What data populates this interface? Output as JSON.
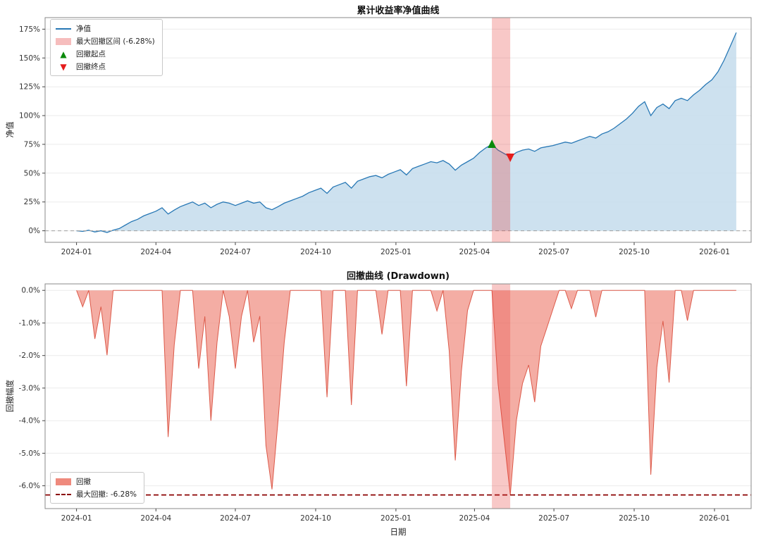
{
  "figure": {
    "background": "#ffffff"
  },
  "x_domain": [
    "2023-11-26",
    "2026-02-12"
  ],
  "dates": [
    "2024-01-01",
    "2024-01-08",
    "2024-01-15",
    "2024-01-22",
    "2024-01-29",
    "2024-02-05",
    "2024-02-12",
    "2024-02-19",
    "2024-02-26",
    "2024-03-04",
    "2024-03-11",
    "2024-03-18",
    "2024-03-25",
    "2024-04-01",
    "2024-04-08",
    "2024-04-15",
    "2024-04-22",
    "2024-04-29",
    "2024-05-06",
    "2024-05-13",
    "2024-05-20",
    "2024-05-27",
    "2024-06-03",
    "2024-06-10",
    "2024-06-17",
    "2024-06-24",
    "2024-07-01",
    "2024-07-08",
    "2024-07-15",
    "2024-07-22",
    "2024-07-29",
    "2024-08-05",
    "2024-08-12",
    "2024-08-19",
    "2024-08-26",
    "2024-09-02",
    "2024-09-09",
    "2024-09-16",
    "2024-09-23",
    "2024-09-30",
    "2024-10-07",
    "2024-10-14",
    "2024-10-21",
    "2024-10-28",
    "2024-11-04",
    "2024-11-11",
    "2024-11-18",
    "2024-11-25",
    "2024-12-02",
    "2024-12-09",
    "2024-12-16",
    "2024-12-23",
    "2024-12-30",
    "2025-01-06",
    "2025-01-13",
    "2025-01-20",
    "2025-01-27",
    "2025-02-03",
    "2025-02-10",
    "2025-02-17",
    "2025-02-24",
    "2025-03-03",
    "2025-03-10",
    "2025-03-17",
    "2025-03-24",
    "2025-03-31",
    "2025-04-07",
    "2025-04-14",
    "2025-04-21",
    "2025-04-28",
    "2025-05-05",
    "2025-05-12",
    "2025-05-19",
    "2025-05-26",
    "2025-06-02",
    "2025-06-09",
    "2025-06-16",
    "2025-06-23",
    "2025-06-30",
    "2025-07-07",
    "2025-07-14",
    "2025-07-21",
    "2025-07-28",
    "2025-08-04",
    "2025-08-11",
    "2025-08-18",
    "2025-08-25",
    "2025-09-01",
    "2025-09-08",
    "2025-09-15",
    "2025-09-22",
    "2025-09-29",
    "2025-10-06",
    "2025-10-13",
    "2025-10-20",
    "2025-10-27",
    "2025-11-03",
    "2025-11-10",
    "2025-11-17",
    "2025-11-24",
    "2025-12-01",
    "2025-12-08",
    "2025-12-15",
    "2025-12-22",
    "2025-12-29",
    "2026-01-05",
    "2026-01-12",
    "2026-01-19",
    "2026-01-26"
  ],
  "x_ticks": [
    {
      "date": "2024-01-01",
      "label": "2024-01"
    },
    {
      "date": "2024-04-01",
      "label": "2024-04"
    },
    {
      "date": "2024-07-01",
      "label": "2024-07"
    },
    {
      "date": "2024-10-01",
      "label": "2024-10"
    },
    {
      "date": "2025-01-01",
      "label": "2025-01"
    },
    {
      "date": "2025-04-01",
      "label": "2025-04"
    },
    {
      "date": "2025-07-01",
      "label": "2025-07"
    },
    {
      "date": "2025-10-01",
      "label": "2025-10"
    },
    {
      "date": "2026-01-01",
      "label": "2026-01"
    }
  ],
  "chart_data": [
    {
      "type": "area",
      "title": "累计收益率净值曲线",
      "ylabel": "净值",
      "xlabel": "",
      "ylim": [
        -10,
        185
      ],
      "y_ticks": [
        {
          "value": 0,
          "label": "0%"
        },
        {
          "value": 25,
          "label": "25%"
        },
        {
          "value": 50,
          "label": "50%"
        },
        {
          "value": 75,
          "label": "75%"
        },
        {
          "value": 100,
          "label": "100%"
        },
        {
          "value": 125,
          "label": "125%"
        },
        {
          "value": 150,
          "label": "150%"
        },
        {
          "value": 175,
          "label": "175%"
        }
      ],
      "series": [
        {
          "name": "净值",
          "line_color": "#2878b5",
          "fill_color": "#c4dcec",
          "fill_opacity": 0.85,
          "values": [
            0,
            -0.5,
            0.5,
            -1,
            0,
            -1.5,
            0.5,
            2,
            5,
            8,
            10,
            13,
            15,
            17,
            20,
            14.6,
            18,
            21,
            23,
            25,
            22,
            24,
            20,
            23,
            25,
            24,
            22,
            24,
            26,
            24,
            25,
            20,
            18.3,
            21,
            24,
            26,
            28,
            30,
            33,
            35,
            37,
            32.5,
            38,
            40,
            42,
            37,
            43,
            45,
            47,
            48,
            46,
            49,
            51,
            53,
            48.5,
            54,
            56,
            58,
            60,
            59,
            61,
            58,
            52.6,
            57,
            60,
            63,
            68,
            72,
            75,
            70,
            67,
            64,
            68,
            70,
            71,
            69,
            72,
            73,
            74,
            75.5,
            77,
            76,
            78,
            80,
            82,
            80.5,
            84,
            86,
            89,
            93,
            97,
            102,
            108,
            112,
            100,
            107,
            110,
            106,
            113,
            115,
            113,
            118,
            122,
            127,
            131,
            138,
            148,
            160,
            172
          ]
        }
      ],
      "zero_line": {
        "value": 0,
        "color": "#a0a0a0",
        "dash": "5,4"
      },
      "drawdown_band": {
        "label": "最大回撤区间 (-6.28%)",
        "start": "2025-04-21",
        "end": "2025-05-12",
        "color": "#e53935",
        "opacity": 0.28
      },
      "markers": [
        {
          "label": "回撤起点",
          "shape": "triangle-up",
          "color": "#0b8a0b",
          "date": "2025-04-21",
          "value": 75
        },
        {
          "label": "回撤终点",
          "shape": "triangle-down",
          "color": "#e51c1c",
          "date": "2025-05-12",
          "value": 64
        }
      ],
      "legend": {
        "position": "upper-left",
        "items": [
          {
            "glyph": "line",
            "color": "#2878b5",
            "label": "净值"
          },
          {
            "glyph": "patch",
            "color": "#f6bdbd",
            "label": "最大回撤区间 (-6.28%)"
          },
          {
            "glyph": "triangle-up",
            "color": "#0b8a0b",
            "label": "回撤起点"
          },
          {
            "glyph": "triangle-down",
            "color": "#e51c1c",
            "label": "回撤终点"
          }
        ]
      }
    },
    {
      "type": "area",
      "title": "回撤曲线 (Drawdown)",
      "ylabel": "回撤幅度",
      "xlabel": "日期",
      "ylim": [
        -6.7,
        0.2
      ],
      "y_ticks": [
        {
          "value": 0,
          "label": "0.0%"
        },
        {
          "value": -1,
          "label": "-1.0%"
        },
        {
          "value": -2,
          "label": "-2.0%"
        },
        {
          "value": -3,
          "label": "-3.0%"
        },
        {
          "value": -4,
          "label": "-4.0%"
        },
        {
          "value": -5,
          "label": "-5.0%"
        },
        {
          "value": -6,
          "label": "-6.0%"
        }
      ],
      "series": [
        {
          "name": "回撤",
          "line_color": "#dc5a4a",
          "fill_color": "#ef8a7d",
          "fill_opacity": 0.7,
          "values": [
            0,
            -0.5,
            0,
            -1.49,
            -0.5,
            -1.99,
            0,
            0,
            0,
            0,
            0,
            0,
            0,
            0,
            0,
            -4.5,
            -1.67,
            0,
            0,
            0,
            -2.4,
            -0.8,
            -4.0,
            -1.6,
            0,
            -0.8,
            -2.4,
            -0.8,
            0,
            -1.59,
            -0.79,
            -4.76,
            -6.11,
            -3.97,
            -1.59,
            0,
            0,
            0,
            0,
            0,
            0,
            -3.28,
            0,
            0,
            0,
            -3.52,
            0,
            0,
            0,
            0,
            -1.35,
            0,
            0,
            0,
            -2.94,
            0,
            0,
            0,
            0,
            -0.63,
            0,
            -1.86,
            -5.22,
            -2.48,
            -0.62,
            0,
            0,
            0,
            0,
            -2.86,
            -4.57,
            -6.28,
            -4.0,
            -2.86,
            -2.29,
            -3.43,
            -1.71,
            -1.14,
            -0.57,
            0,
            0,
            -0.56,
            0,
            0,
            0,
            -0.82,
            0,
            0,
            0,
            0,
            0,
            0,
            0,
            0,
            -5.66,
            -2.36,
            -0.94,
            -2.83,
            0,
            0,
            -0.93,
            0,
            0,
            0,
            0,
            0,
            0,
            0,
            0
          ]
        }
      ],
      "max_drawdown_line": {
        "label": "最大回撤: -6.28%",
        "value": -6.28,
        "color": "#8b0000",
        "dash": "7,4"
      },
      "drawdown_band": {
        "start": "2025-04-21",
        "end": "2025-05-12",
        "color": "#e53935",
        "opacity": 0.28
      },
      "legend": {
        "position": "lower-left",
        "items": [
          {
            "glyph": "patch",
            "color": "#ef8a7d",
            "label": "回撤"
          },
          {
            "glyph": "dashed-line",
            "color": "#8b0000",
            "label": "最大回撤: -6.28%"
          }
        ]
      }
    }
  ]
}
